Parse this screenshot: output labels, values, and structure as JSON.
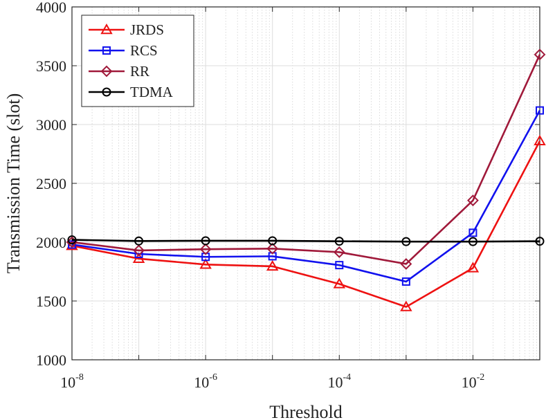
{
  "chart_data": {
    "type": "line",
    "title": "",
    "xlabel": "Threshold",
    "ylabel": "Transmission Time (slot)",
    "xscale": "log",
    "x_exponents": [
      -8,
      -7,
      -6,
      -5,
      -4,
      -3,
      -2,
      -1
    ],
    "xlim_exponents": [
      -8,
      -1
    ],
    "ylim": [
      1000,
      4000
    ],
    "xticks": [
      {
        "base": "10",
        "exp": "-8",
        "e": -8
      },
      {
        "base": "10",
        "exp": "-6",
        "e": -6
      },
      {
        "base": "10",
        "exp": "-4",
        "e": -4
      },
      {
        "base": "10",
        "exp": "-2",
        "e": -2
      }
    ],
    "yticks": [
      "1000",
      "1500",
      "2000",
      "2500",
      "3000",
      "3500",
      "4000"
    ],
    "grid": true,
    "legend_position": "top-left",
    "series": [
      {
        "name": "JRDS",
        "color": "#ee1111",
        "marker": "triangle",
        "values": [
          1970,
          1860,
          1810,
          1795,
          1645,
          1450,
          1780,
          2860
        ]
      },
      {
        "name": "RCS",
        "color": "#1111ee",
        "marker": "square",
        "values": [
          1980,
          1900,
          1875,
          1880,
          1805,
          1665,
          2080,
          3120
        ]
      },
      {
        "name": "RR",
        "color": "#a0193a",
        "marker": "diamond",
        "values": [
          2000,
          1930,
          1940,
          1945,
          1915,
          1815,
          2355,
          3595
        ]
      },
      {
        "name": "TDMA",
        "color": "#000000",
        "marker": "circle",
        "values": [
          2020,
          2010,
          2012,
          2012,
          2008,
          2005,
          2005,
          2008
        ]
      }
    ]
  }
}
